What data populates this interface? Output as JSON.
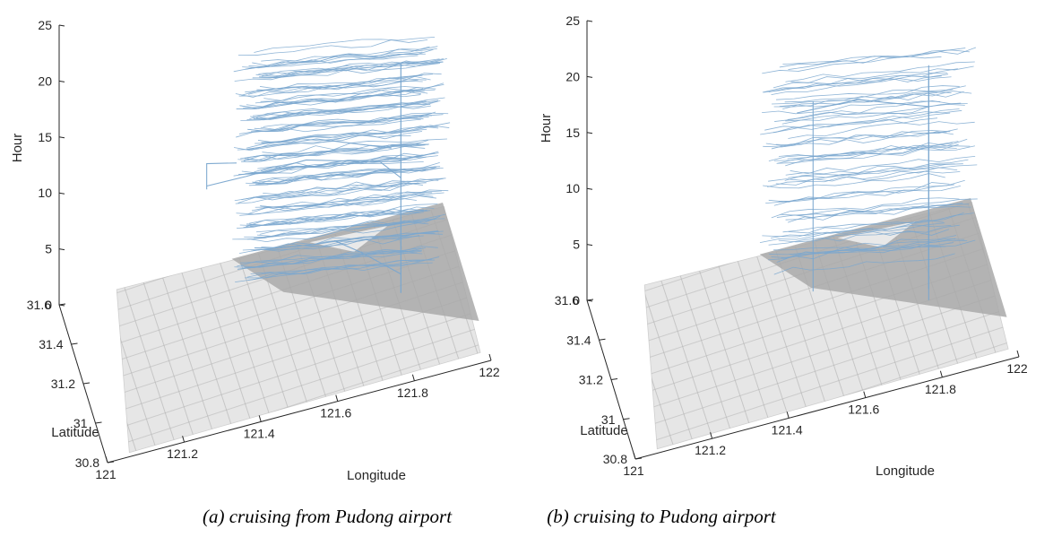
{
  "chart_data": [
    {
      "type": "line3d",
      "caption": "(a) cruising from Pudong airport",
      "xlabel": "Longitude",
      "ylabel": "Latitude",
      "zlabel": "Hour",
      "xlim": [
        121,
        122
      ],
      "ylim": [
        30.8,
        31.6
      ],
      "zlim": [
        0,
        25
      ],
      "xticks": [
        "121",
        "121.2",
        "121.4",
        "121.6",
        "121.8",
        "122"
      ],
      "yticks": [
        "30.8",
        "31",
        "31.2",
        "31.4",
        "31.6"
      ],
      "zticks": [
        "0",
        "5",
        "10",
        "15",
        "20",
        "25"
      ],
      "line_color": "#7aa7cf",
      "base": "gray map of Shanghai road network at Hour 0",
      "trajectories": [
        {
          "points": [
            [
              121.35,
              31.38,
              11.3
            ],
            [
              121.45,
              31.36,
              11.6
            ],
            [
              121.6,
              31.32,
              12.4
            ],
            [
              121.78,
              31.24,
              12.0
            ],
            [
              121.82,
              31.15,
              11.8
            ]
          ]
        },
        {
          "points": [
            [
              121.35,
              31.38,
              11.0
            ],
            [
              121.35,
              31.38,
              13.3
            ],
            [
              121.42,
              31.33,
              13.6
            ]
          ]
        },
        {
          "points": [
            [
              121.45,
              31.35,
              14.2
            ],
            [
              121.62,
              31.28,
              14.8
            ],
            [
              121.8,
              31.18,
              14.1
            ]
          ]
        },
        {
          "points": [
            [
              121.82,
              31.15,
              3.2
            ],
            [
              121.7,
              31.05,
              8.0
            ],
            [
              121.62,
              30.98,
              11.0
            ]
          ]
        }
      ]
    },
    {
      "type": "line3d",
      "caption": "(b) cruising to Pudong airport",
      "xlabel": "Longitude",
      "ylabel": "Latitude",
      "zlabel": "Hour",
      "xlim": [
        121,
        122
      ],
      "ylim": [
        30.8,
        31.6
      ],
      "zlim": [
        0,
        25
      ],
      "xticks": [
        "121",
        "121.2",
        "121.4",
        "121.6",
        "121.8",
        "122"
      ],
      "yticks": [
        "30.8",
        "31",
        "31.2",
        "31.4",
        "31.6"
      ],
      "zticks": [
        "0",
        "5",
        "10",
        "15",
        "20",
        "25"
      ],
      "line_color": "#7aa7cf",
      "base": "gray map of Shanghai road network at Hour 0",
      "trajectories": [
        {
          "points": [
            [
              121.5,
              31.3,
              17.5
            ],
            [
              121.65,
              31.25,
              18.2
            ],
            [
              121.82,
              31.15,
              17.8
            ]
          ]
        },
        {
          "points": [
            [
              121.82,
              31.15,
              0.5
            ],
            [
              121.82,
              31.15,
              21.5
            ]
          ]
        },
        {
          "points": [
            [
              121.55,
              31.35,
              0.2
            ],
            [
              121.55,
              31.35,
              17.2
            ]
          ]
        }
      ]
    }
  ]
}
